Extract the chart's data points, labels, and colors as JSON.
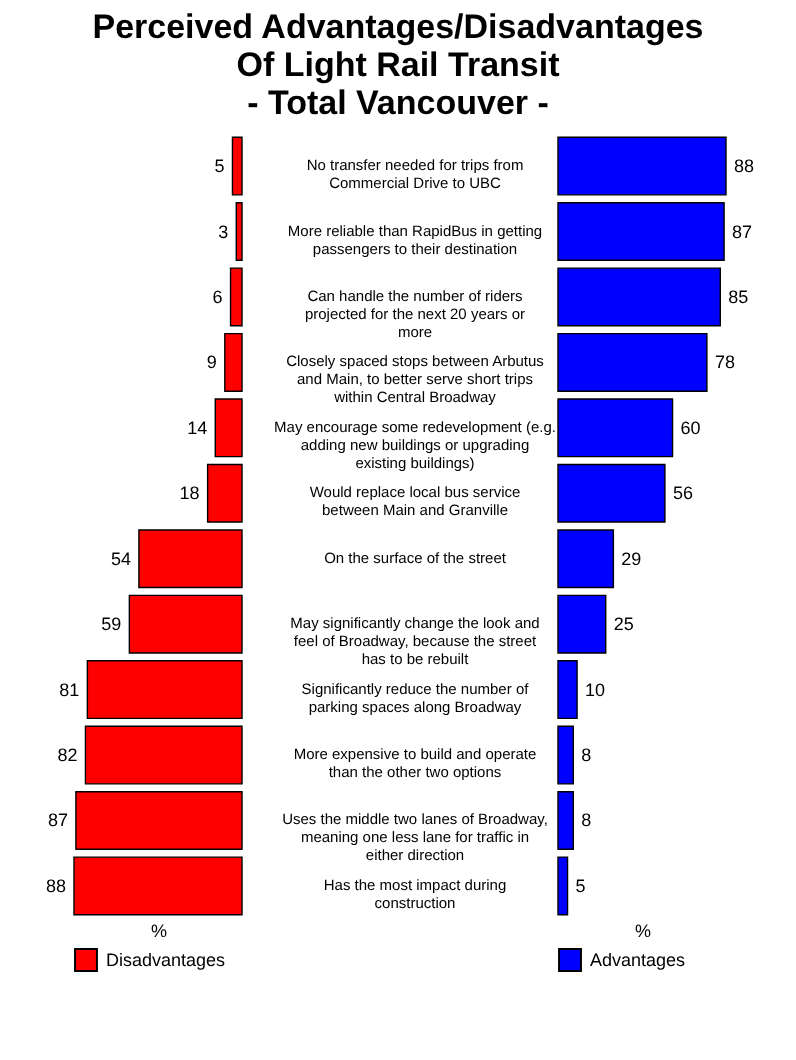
{
  "chart_data": [
    {
      "type": "bar",
      "orientation": "horizontal",
      "title": "Perceived Advantages/Disadvantages\nOf Light Rail Transit\n- Total Vancouver -",
      "xlabel": "%",
      "xlim": [
        88,
        0
      ],
      "tick_labels": "y",
      "categories": [
        "No transfer needed for trips from Commercial Drive to UBC",
        "More reliable than RapidBus in getting passengers to their destination",
        "Can handle the number of riders projected for the next 20 years or more",
        "Closely spaced stops between Arbutus and Main, to better serve short trips within Central Broadway",
        "May encourage some redevelopment (e.g. adding new buildings or upgrading existing buildings)",
        "Would replace local bus service between Main and Granville",
        "On the surface of the street",
        "May significantly change the look and feel of Broadway, because the street has to be rebuilt",
        "Significantly reduce the number of parking spaces along Broadway",
        "More expensive to build and operate than the other two options",
        "Uses the middle two lanes of Broadway, meaning one less lane for traffic in either direction",
        "Has the most impact during construction"
      ],
      "series": [
        {
          "name": "Disadvantages",
          "color": "#ff0000",
          "values": [
            5,
            3,
            6,
            9,
            14,
            18,
            54,
            59,
            81,
            82,
            87,
            88
          ]
        }
      ],
      "data_labels": true,
      "legend": "bottom",
      "grid": false
    },
    {
      "type": "bar",
      "orientation": "horizontal",
      "xlabel": "%",
      "xlim": [
        0,
        88
      ],
      "tick_labels": false,
      "categories": [
        null,
        null,
        null,
        null,
        null,
        null,
        null,
        null,
        null,
        null,
        null,
        null
      ],
      "series": [
        {
          "name": "Advantages",
          "color": "#0000ff",
          "values": [
            88,
            87,
            85,
            78,
            60,
            56,
            29,
            25,
            10,
            8,
            8,
            5
          ]
        }
      ],
      "data_labels": true,
      "legend": "bottom",
      "grid": false
    }
  ]
}
